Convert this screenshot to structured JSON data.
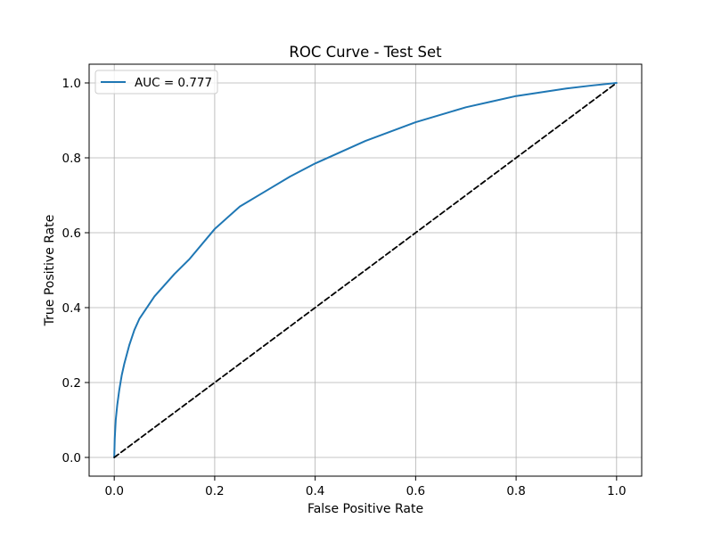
{
  "chart_data": {
    "type": "line",
    "title": "ROC Curve - Test Set",
    "xlabel": "False Positive Rate",
    "ylabel": "True Positive Rate",
    "xlim": [
      -0.05,
      1.05
    ],
    "ylim": [
      -0.05,
      1.05
    ],
    "xticks": [
      0.0,
      0.2,
      0.4,
      0.6,
      0.8,
      1.0
    ],
    "yticks": [
      0.0,
      0.2,
      0.4,
      0.6,
      0.8,
      1.0
    ],
    "xtick_labels": [
      "0.0",
      "0.2",
      "0.4",
      "0.6",
      "0.8",
      "1.0"
    ],
    "ytick_labels": [
      "0.0",
      "0.2",
      "0.4",
      "0.6",
      "0.8",
      "1.0"
    ],
    "grid": true,
    "legend_position": "top-left",
    "series": [
      {
        "name": "AUC = 0.777",
        "color": "#1f77b4",
        "line_style": "solid",
        "x": [
          0.0,
          0.001,
          0.003,
          0.006,
          0.01,
          0.015,
          0.02,
          0.03,
          0.04,
          0.05,
          0.06,
          0.07,
          0.08,
          0.1,
          0.12,
          0.15,
          0.2,
          0.25,
          0.3,
          0.35,
          0.4,
          0.45,
          0.5,
          0.55,
          0.6,
          0.65,
          0.7,
          0.75,
          0.8,
          0.85,
          0.9,
          0.95,
          1.0
        ],
        "y": [
          0.0,
          0.05,
          0.1,
          0.14,
          0.18,
          0.22,
          0.25,
          0.3,
          0.34,
          0.37,
          0.39,
          0.41,
          0.43,
          0.46,
          0.49,
          0.53,
          0.61,
          0.67,
          0.71,
          0.75,
          0.785,
          0.815,
          0.845,
          0.87,
          0.895,
          0.915,
          0.935,
          0.95,
          0.965,
          0.975,
          0.985,
          0.993,
          1.0
        ]
      },
      {
        "name": "",
        "color": "#000000",
        "line_style": "dashed",
        "x": [
          0.0,
          1.0
        ],
        "y": [
          0.0,
          1.0
        ]
      }
    ]
  }
}
